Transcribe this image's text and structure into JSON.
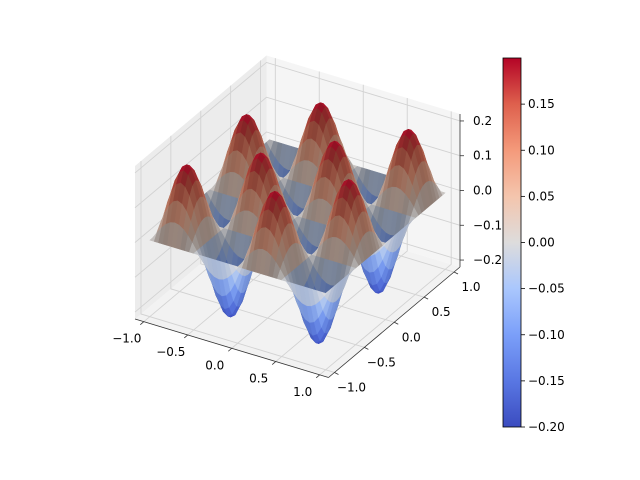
{
  "chart_data": {
    "type": "surface3d",
    "title": "",
    "xlabel": "",
    "ylabel": "",
    "zlabel": "",
    "xlim": [
      -1.1,
      1.1
    ],
    "ylim": [
      -1.1,
      1.1
    ],
    "zlim": [
      -0.22,
      0.22
    ],
    "x_ticks": [
      -1.0,
      -0.5,
      0.0,
      0.5,
      1.0
    ],
    "y_ticks": [
      -1.0,
      -0.5,
      0.0,
      0.5,
      1.0
    ],
    "z_ticks": [
      -0.2,
      -0.1,
      0.0,
      0.1,
      0.2
    ],
    "x_tick_labels": [
      "−1.0",
      "−0.5",
      "0.0",
      "0.5",
      "1.0"
    ],
    "y_tick_labels": [
      "−1.0",
      "−0.5",
      "0.0",
      "0.5",
      "1.0"
    ],
    "z_tick_labels": [
      "−0.2",
      "−0.1",
      "0.0",
      "0.1",
      "0.2"
    ],
    "grid": true,
    "colormap": "coolwarm",
    "surface": {
      "function": "0.2 * sin(2*pi*x) * sin(2*pi*y)",
      "domain": [
        -1.0,
        1.0
      ],
      "z_range": [
        -0.2,
        0.2
      ]
    },
    "colorbar": {
      "range": [
        -0.2,
        0.2
      ],
      "ticks": [
        -0.2,
        -0.15,
        -0.1,
        -0.05,
        0.0,
        0.05,
        0.1,
        0.15
      ],
      "tick_labels": [
        "−0.20",
        "−0.15",
        "−0.10",
        "−0.05",
        "0.00",
        "0.05",
        "0.10",
        "0.15"
      ]
    }
  },
  "colors": {
    "cmap_low": "#3b4cc0",
    "cmap_mid": "#dddddd",
    "cmap_high": "#b40426",
    "pane": "#f2f2f2",
    "grid": "#d2d2d2"
  }
}
